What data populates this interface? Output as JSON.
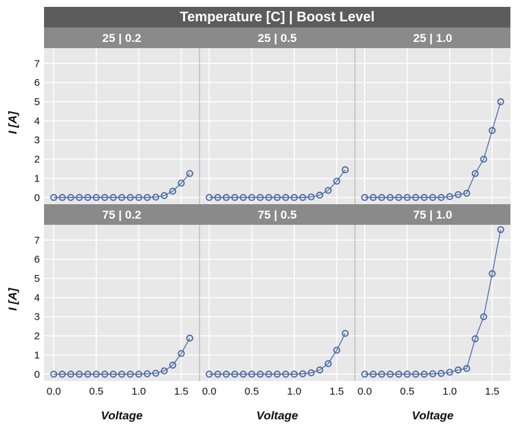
{
  "chart_data": {
    "type": "line",
    "title": "Temperature [C] | Boost Level",
    "xlabel": "Voltage",
    "ylabel": "I [A]",
    "xlim": [
      -0.05,
      1.65
    ],
    "ylim": [
      -0.35,
      7.8
    ],
    "x_ticks": [
      0.0,
      0.5,
      1.0,
      1.5
    ],
    "x_tick_labels": [
      "0.0",
      "0.5",
      "1.0",
      "1.5"
    ],
    "y_ticks": [
      0,
      1,
      2,
      3,
      4,
      5,
      6,
      7
    ],
    "y_tick_labels": [
      "0",
      "1",
      "2",
      "3",
      "4",
      "5",
      "6",
      "7"
    ],
    "grid": true,
    "marker": "open-circle",
    "colors": {
      "series": "#4a6aa8",
      "strip_outer": "#5c5c5c",
      "strip_inner": "#8a8a8a",
      "panel_bg": "#e8e8e8",
      "grid": "#ffffff"
    },
    "x": [
      0.0,
      0.1,
      0.2,
      0.3,
      0.4,
      0.5,
      0.6,
      0.7,
      0.8,
      0.9,
      1.0,
      1.1,
      1.2,
      1.3,
      1.4,
      1.5,
      1.6
    ],
    "panels": [
      {
        "label": "25 | 0.2",
        "values": [
          0,
          0,
          0,
          0,
          0,
          0,
          0,
          0,
          0,
          0,
          0,
          0,
          0.02,
          0.1,
          0.33,
          0.75,
          1.25
        ]
      },
      {
        "label": "25 | 0.5",
        "values": [
          0,
          0,
          0,
          0,
          0,
          0,
          0,
          0,
          0,
          0,
          0,
          0,
          0.03,
          0.12,
          0.37,
          0.85,
          1.45
        ]
      },
      {
        "label": "25 | 1.0",
        "values": [
          0,
          0,
          0,
          0,
          0,
          0,
          0,
          0,
          0,
          0,
          0.05,
          0.15,
          0.22,
          1.25,
          2.0,
          3.5,
          5.0
        ]
      },
      {
        "label": "75 | 0.2",
        "values": [
          0,
          0,
          0,
          0,
          0,
          0,
          0,
          0,
          0,
          0,
          0,
          0.02,
          0.05,
          0.17,
          0.47,
          1.08,
          1.88
        ]
      },
      {
        "label": "75 | 0.5",
        "values": [
          0,
          0,
          0,
          0,
          0,
          0,
          0,
          0,
          0,
          0,
          0,
          0.02,
          0.07,
          0.22,
          0.55,
          1.25,
          2.13
        ]
      },
      {
        "label": "75 | 1.0",
        "values": [
          0,
          0,
          0,
          0,
          0,
          0,
          0,
          0,
          0.02,
          0.04,
          0.1,
          0.22,
          0.3,
          1.85,
          3.0,
          5.25,
          7.55
        ]
      }
    ]
  }
}
